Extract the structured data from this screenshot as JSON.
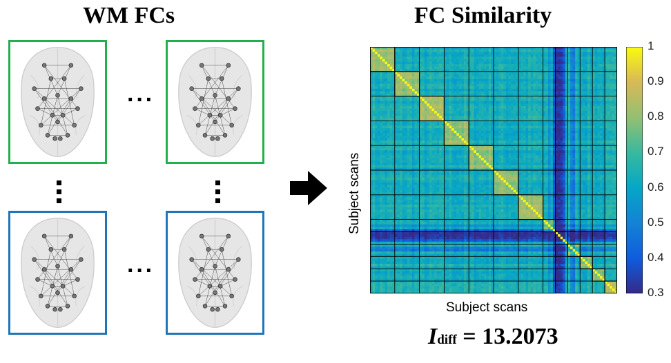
{
  "left_title": "WM FCs",
  "right_title": "FC Similarity",
  "horizontal_ellipsis": "···",
  "matrix": {
    "xlabel": "Subject scans",
    "ylabel": "Subject scans",
    "n": 100,
    "blocks": [
      [
        0,
        10
      ],
      [
        10,
        20
      ],
      [
        20,
        30
      ],
      [
        30,
        40
      ],
      [
        40,
        50
      ],
      [
        50,
        60
      ],
      [
        60,
        70
      ],
      [
        70,
        75
      ],
      [
        75,
        80
      ],
      [
        80,
        85
      ],
      [
        85,
        90
      ],
      [
        90,
        95
      ],
      [
        95,
        100
      ]
    ],
    "colorbar_ticks": [
      "1",
      "0.9",
      "0.8",
      "0.7",
      "0.6",
      "0.5",
      "0.4",
      "0.3"
    ],
    "colorbar_range": [
      0.3,
      1.0
    ]
  },
  "idiff": {
    "symbol": "I",
    "subscript": "diff",
    "value_text": " = 13.2073"
  },
  "colors": {
    "green_frame": "#22b04c",
    "blue_frame": "#1f75b8"
  }
}
